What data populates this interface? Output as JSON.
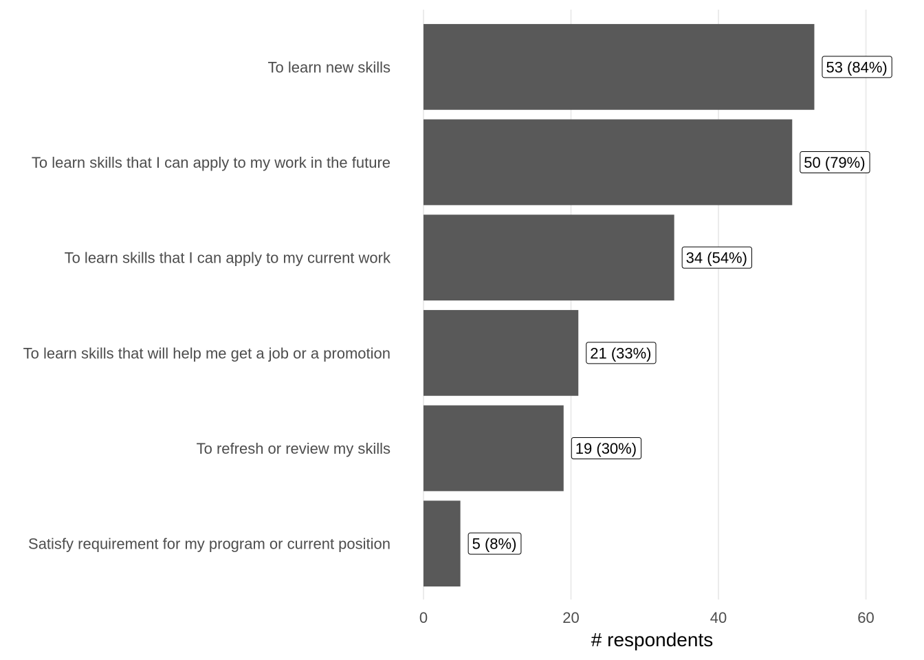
{
  "chart_data": {
    "type": "bar",
    "orientation": "horizontal",
    "categories": [
      "To learn new skills",
      "To learn skills that I can apply to my work in the future",
      "To learn skills that I can apply to my current work",
      "To learn skills that will help me get a job or a promotion",
      "To refresh or review my skills",
      "Satisfy requirement for my program or current position"
    ],
    "values": [
      53,
      50,
      34,
      21,
      19,
      5
    ],
    "data_labels": [
      "53 (84%)",
      "50 (79%)",
      "34 (54%)",
      "21 (33%)",
      "19 (30%)",
      "5 (8%)"
    ],
    "xlabel": "# respondents",
    "ylabel": "",
    "title": "",
    "xlim": [
      0,
      62
    ],
    "xticks": [
      0,
      20,
      40,
      60
    ],
    "xtick_labels": [
      "0",
      "20",
      "40",
      "60"
    ],
    "grid": true,
    "legend": "none",
    "colors": {
      "bar": "#595959",
      "grid": "#ebebeb",
      "axis_text": "#4d4d4d",
      "label_box_border": "#000000"
    }
  }
}
